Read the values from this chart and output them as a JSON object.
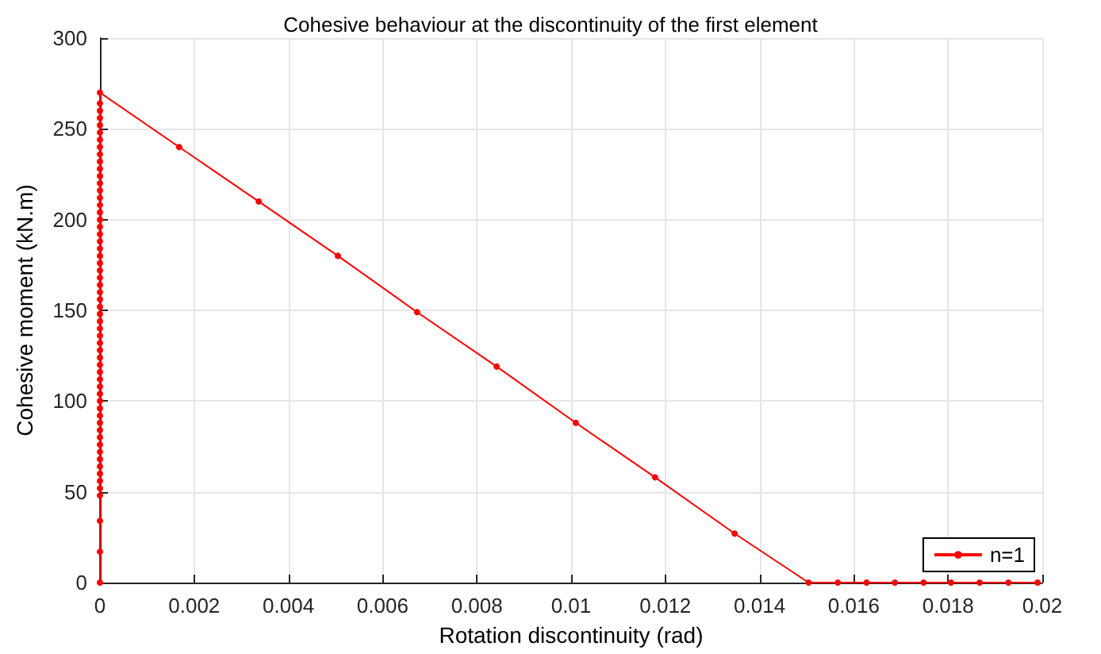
{
  "chart_data": {
    "type": "line",
    "title": "Cohesive behaviour at the discontinuity of the first element",
    "xlabel": "Rotation discontinuity (rad)",
    "ylabel": "Cohesive moment (kN.m)",
    "series": [
      {
        "name": "n=1",
        "color": "#ff0000",
        "x": [
          0,
          0,
          0,
          0,
          0,
          0,
          0,
          0,
          0,
          0,
          0,
          0,
          0,
          0,
          0,
          0,
          0,
          0,
          0,
          0,
          0,
          0,
          0,
          0,
          0,
          0,
          0,
          0,
          0,
          0,
          0,
          0,
          0,
          0,
          0,
          0,
          0,
          0,
          0,
          0,
          0,
          0,
          0,
          0,
          0,
          0,
          0,
          0,
          0,
          0,
          0,
          0,
          0,
          0,
          0,
          0,
          0,
          0,
          0,
          0.00168,
          0.00337,
          0.00505,
          0.00673,
          0.00842,
          0.0101,
          0.01178,
          0.01347,
          0.01504,
          0.01566,
          0.01627,
          0.01687,
          0.01748,
          0.01806,
          0.01867,
          0.01928,
          0.0199
        ],
        "values": [
          0,
          17,
          34,
          48,
          52,
          56,
          60,
          64,
          68,
          72,
          76,
          80,
          84,
          88,
          92,
          96,
          100,
          104,
          108,
          112,
          116,
          120,
          124,
          128,
          132,
          136,
          140,
          144,
          148,
          152,
          156,
          160,
          164,
          168,
          172,
          176,
          180,
          184,
          188,
          192,
          196,
          200,
          204,
          208,
          212,
          216,
          220,
          224,
          228,
          232,
          236,
          240,
          244,
          248,
          252,
          256,
          260,
          264,
          270,
          240,
          210,
          180,
          149,
          119,
          88,
          58,
          27,
          0,
          0,
          0,
          0,
          0,
          0,
          0,
          0,
          0
        ]
      }
    ],
    "xlim": [
      0,
      0.02
    ],
    "xticks": [
      0,
      0.002,
      0.004,
      0.006,
      0.008,
      0.01,
      0.012,
      0.014,
      0.016,
      0.018,
      0.02
    ],
    "ylim": [
      0,
      300
    ],
    "yticks": [
      0,
      50,
      100,
      150,
      200,
      250,
      300
    ],
    "grid": true,
    "legend": "bottom right",
    "marker": "circle",
    "line_style": "solid"
  }
}
